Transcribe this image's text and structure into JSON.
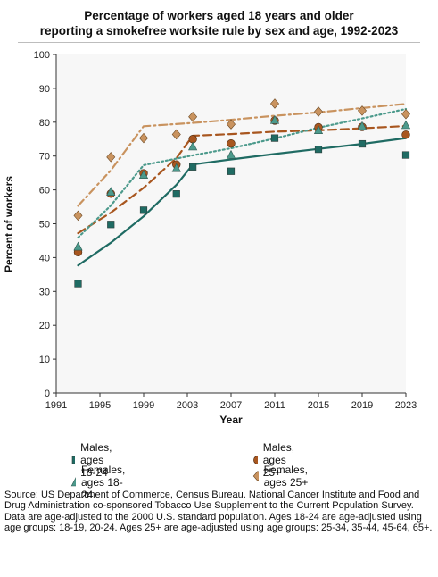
{
  "title_line1": "Percentage of workers aged 18 years and older",
  "title_line2": "reporting a smokefree worksite rule by sex and age, 1992-2023",
  "notes": {
    "source": "Source: US Department of Commerce, Census Bureau. National Cancer Institute and Food and Drug Administration co-sponsored Tobacco Use Supplement to the Current Population Survey.",
    "adjustment": "Data are age-adjusted to the 2000 U.S. standard population. Ages 18-24 are age-adjusted using age groups: 18-19, 20-24. Ages 25+ are age-adjusted using age groups: 25-34, 35-44, 45-64, 65+."
  },
  "chart_data": {
    "type": "scatter",
    "xlabel": "Year",
    "ylabel": "Percent of workers",
    "xlim": [
      1991,
      2023
    ],
    "ylim": [
      0,
      100
    ],
    "xticks": [
      1991,
      1995,
      1999,
      2003,
      2007,
      2011,
      2015,
      2019,
      2023
    ],
    "yticks": [
      0,
      10,
      20,
      30,
      40,
      50,
      60,
      70,
      80,
      90,
      100
    ],
    "grid": false,
    "legend_position": "bottom",
    "series": [
      {
        "name": "Males, ages 18-24",
        "color": "#1f6b63",
        "marker": "square",
        "line_style": "solid",
        "points": [
          [
            1993,
            32.3
          ],
          [
            1996,
            49.8
          ],
          [
            1999,
            54.0
          ],
          [
            2002,
            58.8
          ],
          [
            2003.5,
            66.8
          ],
          [
            2007,
            65.5
          ],
          [
            2011,
            75.3
          ],
          [
            2015,
            72.0
          ],
          [
            2019,
            73.6
          ],
          [
            2023,
            70.3
          ]
        ],
        "trend": [
          [
            1993,
            37.7
          ],
          [
            1996,
            44.4
          ],
          [
            1999,
            52.2
          ],
          [
            2002,
            61.5
          ],
          [
            2003.5,
            67.5
          ],
          [
            2007,
            69.0
          ],
          [
            2011,
            70.6
          ],
          [
            2015,
            72.1
          ],
          [
            2019,
            73.6
          ],
          [
            2023,
            75.3
          ]
        ]
      },
      {
        "name": "Males, ages 25+",
        "color": "#a8561f",
        "marker": "circle",
        "line_style": "dashed",
        "points": [
          [
            1993,
            41.6
          ],
          [
            1996,
            58.9
          ],
          [
            1999,
            64.9
          ],
          [
            2002,
            67.5
          ],
          [
            2003.5,
            75.0
          ],
          [
            2007,
            73.7
          ],
          [
            2011,
            80.5
          ],
          [
            2015,
            78.5
          ],
          [
            2019,
            78.6
          ],
          [
            2023,
            76.3
          ]
        ],
        "trend": [
          [
            1993,
            47.2
          ],
          [
            1996,
            53.3
          ],
          [
            1999,
            60.6
          ],
          [
            2002,
            69.4
          ],
          [
            2003.5,
            76.0
          ],
          [
            2007,
            76.5
          ],
          [
            2011,
            77.2
          ],
          [
            2015,
            77.6
          ],
          [
            2019,
            78.2
          ],
          [
            2023,
            78.9
          ]
        ]
      },
      {
        "name": "Females, ages 18-24",
        "color": "#4c9a8c",
        "marker": "triangle",
        "line_style": "dotted",
        "points": [
          [
            1993,
            43.2
          ],
          [
            1996,
            59.4
          ],
          [
            1999,
            64.4
          ],
          [
            2002,
            66.4
          ],
          [
            2003.5,
            72.8
          ],
          [
            2007,
            70.3
          ],
          [
            2011,
            80.6
          ],
          [
            2015,
            77.6
          ],
          [
            2019,
            78.8
          ],
          [
            2023,
            79.1
          ]
        ],
        "trend": [
          [
            1993,
            45.9
          ],
          [
            1996,
            55.4
          ],
          [
            1999,
            67.3
          ],
          [
            2003.5,
            70.2
          ],
          [
            2007,
            72.3
          ],
          [
            2011,
            75.2
          ],
          [
            2015,
            78.4
          ],
          [
            2019,
            81.1
          ],
          [
            2023,
            83.9
          ]
        ]
      },
      {
        "name": "Females, ages 25+",
        "color": "#c9935f",
        "marker": "diamond",
        "line_style": "dashdot",
        "points": [
          [
            1993,
            52.4
          ],
          [
            1996,
            69.7
          ],
          [
            1999,
            75.3
          ],
          [
            2002,
            76.4
          ],
          [
            2003.5,
            81.6
          ],
          [
            2007,
            79.4
          ],
          [
            2011,
            85.5
          ],
          [
            2015,
            83.1
          ],
          [
            2019,
            83.4
          ],
          [
            2023,
            82.4
          ]
        ],
        "trend": [
          [
            1993,
            55.3
          ],
          [
            1996,
            65.8
          ],
          [
            1999,
            78.8
          ],
          [
            2003.5,
            79.8
          ],
          [
            2007,
            80.7
          ],
          [
            2011,
            81.9
          ],
          [
            2015,
            82.9
          ],
          [
            2019,
            84.2
          ],
          [
            2023,
            85.4
          ]
        ]
      }
    ]
  }
}
